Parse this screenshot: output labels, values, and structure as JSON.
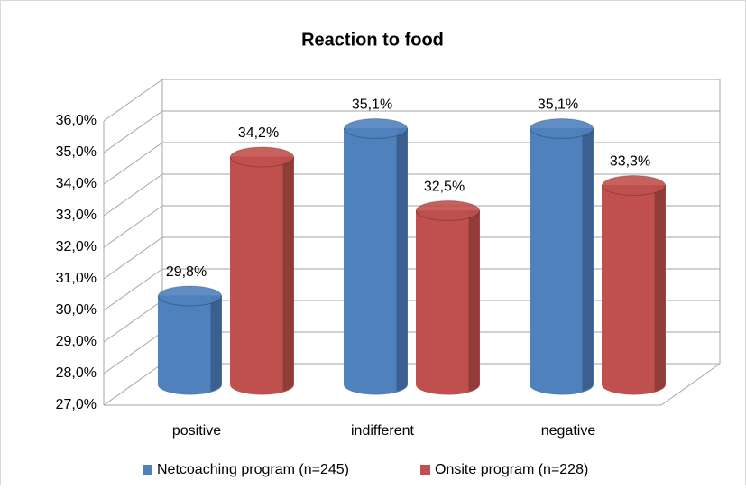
{
  "chart_data": {
    "type": "bar3d",
    "title": "Reaction to food",
    "categories": [
      "positive",
      "indifferent",
      "negative"
    ],
    "series": [
      {
        "name": "Netcoaching program (n=245)",
        "color": "#4f81bd",
        "values": [
          29.8,
          35.1,
          35.1
        ],
        "value_labels": [
          "29,8%",
          "35,1%",
          "35,1%"
        ]
      },
      {
        "name": "Onsite program (n=228)",
        "color": "#c0504d",
        "values": [
          34.2,
          32.5,
          33.3
        ],
        "value_labels": [
          "34,2%",
          "32,5%",
          "33,3%"
        ]
      }
    ],
    "ylim": [
      27,
      36
    ],
    "yticks": [
      {
        "value": 27,
        "label": "27,0%"
      },
      {
        "value": 28,
        "label": "28,0%"
      },
      {
        "value": 29,
        "label": "29,0%"
      },
      {
        "value": 30,
        "label": "30,0%"
      },
      {
        "value": 31,
        "label": "31,0%"
      },
      {
        "value": 32,
        "label": "32,0%"
      },
      {
        "value": 33,
        "label": "33,0%"
      },
      {
        "value": 34,
        "label": "34,0%"
      },
      {
        "value": 35,
        "label": "35,0%"
      },
      {
        "value": 36,
        "label": "36,0%"
      }
    ],
    "grid": true,
    "legend": "bottom"
  }
}
